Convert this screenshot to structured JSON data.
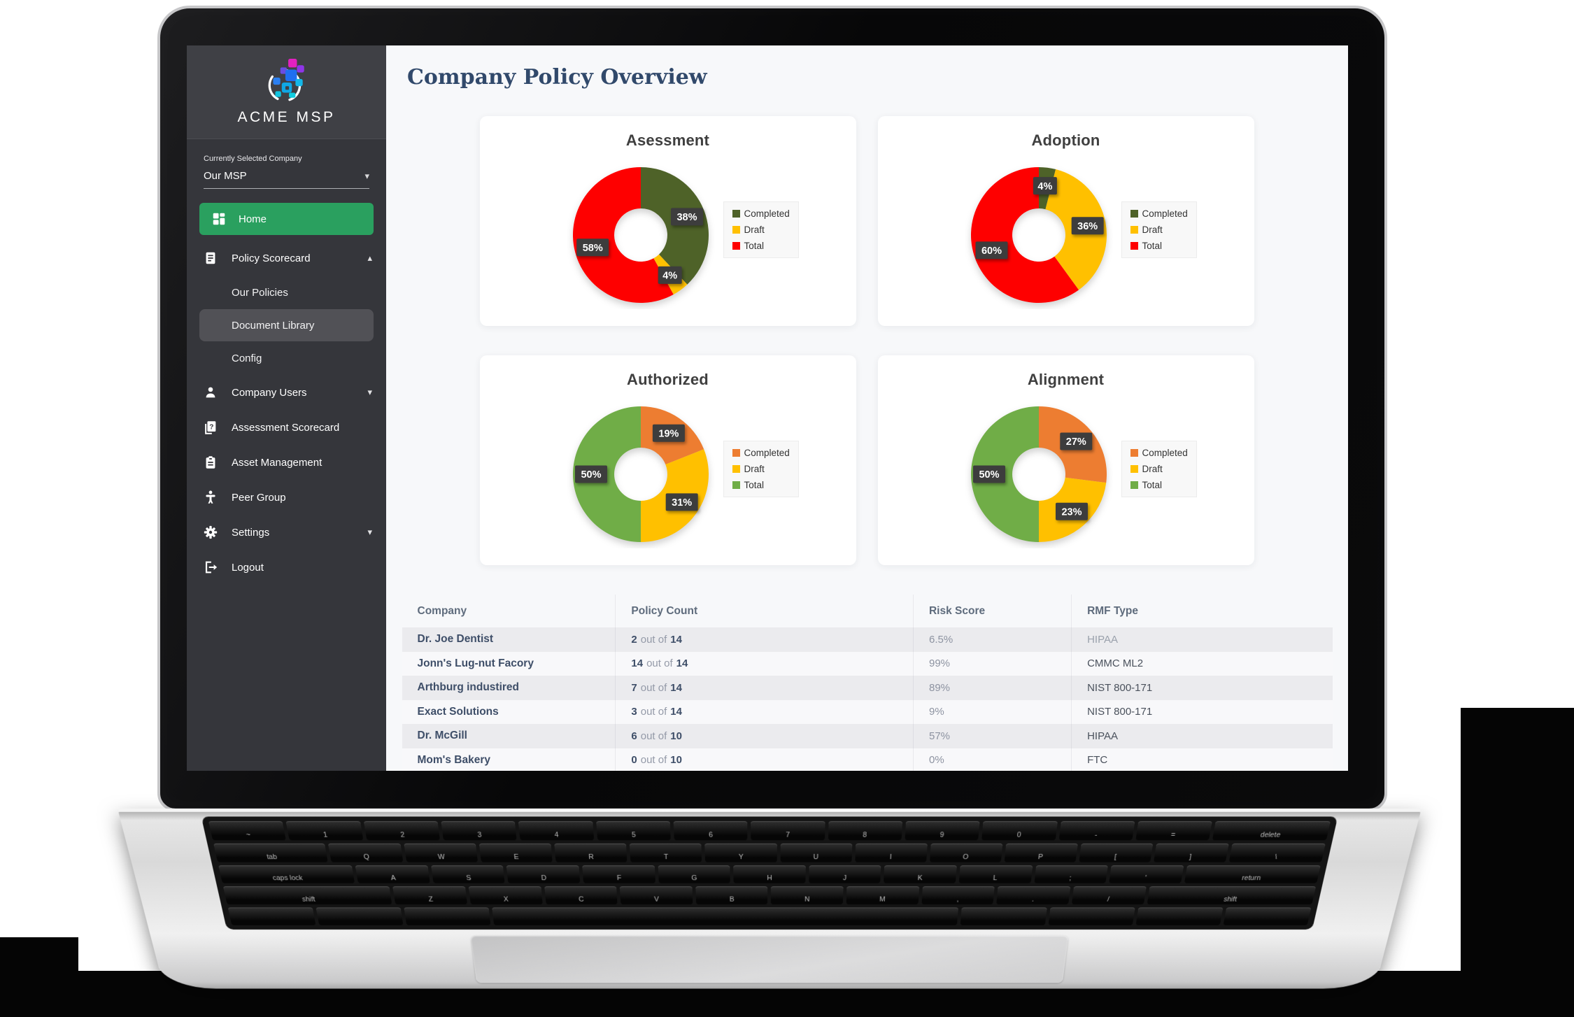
{
  "page": {
    "title": "Company Policy Overview"
  },
  "brand": {
    "name": "ACME MSP"
  },
  "colors": {
    "accent_green": "#2aa05f",
    "sidebar_bg": "#35363b",
    "title_navy": "#31496b",
    "chart_dark_green": "#4e6228",
    "chart_yellow": "#ffc000",
    "chart_red": "#fe0000",
    "chart_orange": "#ed7d31",
    "chart_green": "#70ad47",
    "label_box": "#3d3d3d"
  },
  "sidebar": {
    "selector_label": "Currently Selected Company",
    "selector_value": "Our MSP",
    "items": [
      {
        "label": "Home",
        "icon": "dashboard-icon",
        "active": true
      },
      {
        "label": "Policy Scorecard",
        "icon": "policy-icon",
        "chevron": "up"
      },
      {
        "label": "Our Policies",
        "child": true
      },
      {
        "label": "Document Library",
        "child": true,
        "selected": true
      },
      {
        "label": "Config",
        "child": true
      },
      {
        "label": "Company Users",
        "icon": "users-icon",
        "chevron": "down"
      },
      {
        "label": "Assessment Scorecard",
        "icon": "assessment-icon"
      },
      {
        "label": "Asset Management",
        "icon": "asset-icon"
      },
      {
        "label": "Peer Group",
        "icon": "peer-icon"
      },
      {
        "label": "Settings",
        "icon": "settings-icon",
        "chevron": "down"
      },
      {
        "label": "Logout",
        "icon": "logout-icon"
      }
    ]
  },
  "chart_data": [
    {
      "type": "pie",
      "subtype": "donut",
      "title": "Asessment",
      "legend_position": "right",
      "series": [
        {
          "name": "Completed",
          "value": 38,
          "color": "#4e6228"
        },
        {
          "name": "Draft",
          "value": 4,
          "color": "#ffc000"
        },
        {
          "name": "Total",
          "value": 58,
          "color": "#fe0000"
        }
      ]
    },
    {
      "type": "pie",
      "subtype": "donut",
      "title": "Adoption",
      "legend_position": "right",
      "series": [
        {
          "name": "Completed",
          "value": 4,
          "color": "#4e6228"
        },
        {
          "name": "Draft",
          "value": 36,
          "color": "#ffc000"
        },
        {
          "name": "Total",
          "value": 60,
          "color": "#fe0000"
        }
      ]
    },
    {
      "type": "pie",
      "subtype": "donut",
      "title": "Authorized",
      "legend_position": "right",
      "series": [
        {
          "name": "Completed",
          "value": 19,
          "color": "#ed7d31"
        },
        {
          "name": "Draft",
          "value": 31,
          "color": "#ffc000"
        },
        {
          "name": "Total",
          "value": 50,
          "color": "#70ad47"
        }
      ]
    },
    {
      "type": "pie",
      "subtype": "donut",
      "title": "Alignment",
      "legend_position": "right",
      "series": [
        {
          "name": "Completed",
          "value": 27,
          "color": "#ed7d31"
        },
        {
          "name": "Draft",
          "value": 23,
          "color": "#ffc000"
        },
        {
          "name": "Total",
          "value": 50,
          "color": "#70ad47"
        }
      ]
    }
  ],
  "table": {
    "headers": [
      "Company",
      "Policy Count",
      "Risk Score",
      "RMF Type"
    ],
    "policy_separator": "out of",
    "rows": [
      {
        "company": "Dr. Joe Dentist",
        "policy_completed": "2",
        "policy_total": "14",
        "risk_score": "6.5%",
        "rmf_type": "HIPAA",
        "rmf_muted": true
      },
      {
        "company": "Jonn's Lug-nut Facory",
        "policy_completed": "14",
        "policy_total": "14",
        "risk_score": "99%",
        "rmf_type": "CMMC ML2"
      },
      {
        "company": "Arthburg industired",
        "policy_completed": "7",
        "policy_total": "14",
        "risk_score": "89%",
        "rmf_type": "NIST 800-171"
      },
      {
        "company": "Exact Solutions",
        "policy_completed": "3",
        "policy_total": "14",
        "risk_score": "9%",
        "rmf_type": "NIST 800-171"
      },
      {
        "company": "Dr. McGill",
        "policy_completed": "6",
        "policy_total": "10",
        "risk_score": "57%",
        "rmf_type": "HIPAA"
      },
      {
        "company": "Mom's Bakery",
        "policy_completed": "0",
        "policy_total": "10",
        "risk_score": "0%",
        "rmf_type": "FTC"
      }
    ]
  },
  "keyboard": {
    "rows": [
      [
        "~",
        "1",
        "2",
        "3",
        "4",
        "5",
        "6",
        "7",
        "8",
        "9",
        "0",
        "-",
        "=",
        "delete"
      ],
      [
        "tab",
        "Q",
        "W",
        "E",
        "R",
        "T",
        "Y",
        "U",
        "I",
        "O",
        "P",
        "[",
        "]",
        "\\"
      ],
      [
        "caps lock",
        "A",
        "S",
        "D",
        "F",
        "G",
        "H",
        "J",
        "K",
        "L",
        ";",
        "'",
        "return"
      ],
      [
        "shift",
        "Z",
        "X",
        "C",
        "V",
        "B",
        "N",
        "M",
        ",",
        ".",
        "/",
        "shift"
      ],
      [
        "",
        "",
        "",
        "",
        "",
        "",
        "",
        ""
      ]
    ]
  }
}
